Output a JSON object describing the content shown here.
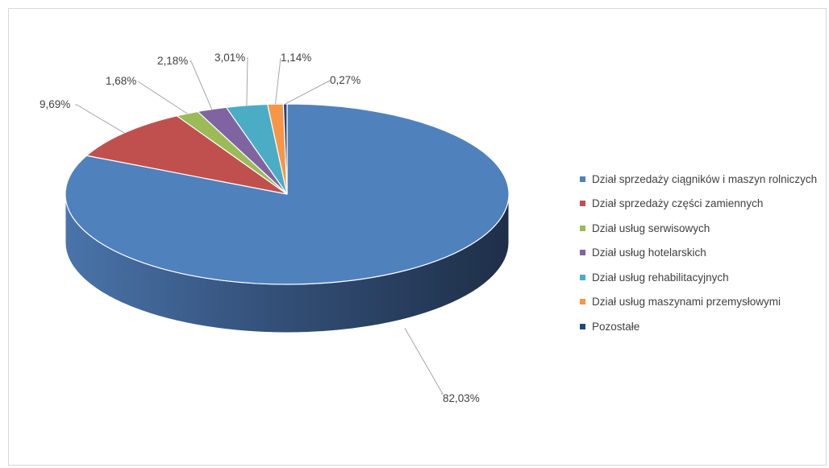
{
  "chart_data": {
    "type": "pie",
    "style": "3d",
    "title": "",
    "legend_position": "right",
    "series": [
      {
        "label": "Dział sprzedaży ciągników i maszyn rolniczych",
        "value": 82.03,
        "value_label": "82,03%",
        "color": "#4f81bd"
      },
      {
        "label": "Dział sprzedaży części zamiennych",
        "value": 9.69,
        "value_label": "9,69%",
        "color": "#c0504d"
      },
      {
        "label": "Dział usług serwisowych",
        "value": 1.68,
        "value_label": "1,68%",
        "color": "#9bbb59"
      },
      {
        "label": "Dział usług hotelarskich",
        "value": 2.18,
        "value_label": "2,18%",
        "color": "#8064a2"
      },
      {
        "label": "Dział usług rehabilitacyjnych",
        "value": 3.01,
        "value_label": "3,01%",
        "color": "#4bacc6"
      },
      {
        "label": "Dział usług maszynami przemysłowymi",
        "value": 1.14,
        "value_label": "1,14%",
        "color": "#f79646"
      },
      {
        "label": "Pozostałe",
        "value": 0.27,
        "value_label": "0,27%",
        "color": "#1f497d"
      }
    ]
  }
}
